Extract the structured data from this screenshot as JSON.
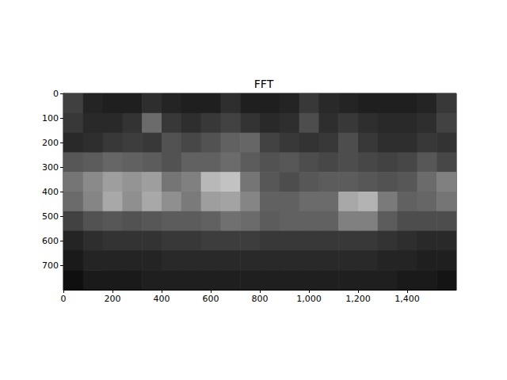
{
  "chart_data": {
    "type": "heatmap",
    "title": "FFT",
    "x": [
      40,
      120,
      200,
      280,
      360,
      440,
      520,
      600,
      680,
      760,
      840,
      920,
      1000,
      1080,
      1160,
      1240,
      1320,
      1400,
      1480,
      1560
    ],
    "y": [
      40,
      120,
      200,
      280,
      360,
      440,
      520,
      600,
      680,
      760
    ],
    "z": [
      [
        25,
        14,
        12,
        12,
        18,
        14,
        12,
        12,
        18,
        12,
        12,
        14,
        22,
        16,
        14,
        12,
        12,
        12,
        14,
        22
      ],
      [
        22,
        16,
        16,
        20,
        42,
        22,
        18,
        22,
        26,
        20,
        16,
        18,
        30,
        18,
        22,
        18,
        16,
        16,
        18,
        26
      ],
      [
        16,
        18,
        22,
        24,
        22,
        32,
        28,
        32,
        38,
        40,
        26,
        22,
        20,
        22,
        30,
        22,
        18,
        18,
        22,
        20
      ],
      [
        34,
        36,
        40,
        38,
        36,
        32,
        38,
        38,
        42,
        36,
        32,
        34,
        30,
        28,
        30,
        28,
        26,
        28,
        34,
        28
      ],
      [
        46,
        54,
        62,
        58,
        62,
        46,
        50,
        72,
        76,
        46,
        34,
        30,
        34,
        36,
        36,
        34,
        32,
        34,
        42,
        50
      ],
      [
        42,
        52,
        66,
        56,
        66,
        56,
        48,
        62,
        64,
        52,
        38,
        38,
        42,
        42,
        66,
        70,
        48,
        38,
        40,
        46
      ],
      [
        26,
        32,
        34,
        32,
        34,
        36,
        36,
        38,
        44,
        42,
        36,
        38,
        38,
        38,
        50,
        50,
        36,
        30,
        30,
        30
      ],
      [
        14,
        18,
        20,
        20,
        20,
        22,
        22,
        24,
        24,
        24,
        22,
        22,
        22,
        22,
        22,
        22,
        20,
        18,
        16,
        16
      ],
      [
        10,
        14,
        14,
        14,
        14,
        16,
        16,
        16,
        16,
        16,
        16,
        16,
        16,
        16,
        16,
        16,
        14,
        14,
        12,
        12
      ],
      [
        6,
        10,
        10,
        10,
        12,
        12,
        12,
        12,
        12,
        12,
        12,
        12,
        12,
        12,
        12,
        12,
        12,
        10,
        10,
        8
      ]
    ],
    "zlim": [
      0,
      100
    ],
    "xlim": [
      0,
      1600
    ],
    "xticks": [
      0,
      200,
      400,
      600,
      800,
      1000,
      1200,
      1400
    ],
    "ylim": [
      800,
      0
    ],
    "yticks": [
      0,
      100,
      200,
      300,
      400,
      500,
      600,
      700
    ],
    "grid": false
  }
}
